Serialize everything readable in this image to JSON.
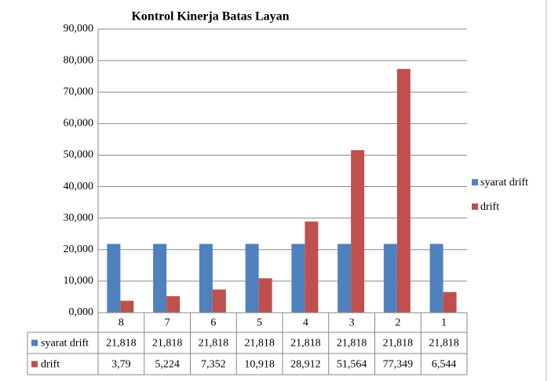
{
  "chart_data": {
    "type": "bar",
    "title": "Kontrol Kinerja Batas Layan",
    "categories": [
      "8",
      "7",
      "6",
      "5",
      "4",
      "3",
      "2",
      "1"
    ],
    "series": [
      {
        "name": "syarat drift",
        "color": "#4f81bd",
        "values": [
          21.818,
          21.818,
          21.818,
          21.818,
          21.818,
          21.818,
          21.818,
          21.818
        ],
        "value_labels": [
          "21,818",
          "21,818",
          "21,818",
          "21,818",
          "21,818",
          "21,818",
          "21,818",
          "21,818"
        ]
      },
      {
        "name": "drift",
        "color": "#c0504d",
        "values": [
          3.79,
          5.224,
          7.352,
          10.918,
          28.912,
          51.564,
          77.349,
          6.544
        ],
        "value_labels": [
          "3,79",
          "5,224",
          "7,352",
          "10,918",
          "28,912",
          "51,564",
          "77,349",
          "6,544"
        ]
      }
    ],
    "ylim": [
      0,
      90
    ],
    "yticks": [
      {
        "value": 0,
        "label": "0,000"
      },
      {
        "value": 10,
        "label": "10,000"
      },
      {
        "value": 20,
        "label": "20,000"
      },
      {
        "value": 30,
        "label": "30,000"
      },
      {
        "value": 40,
        "label": "40,000"
      },
      {
        "value": 50,
        "label": "50,000"
      },
      {
        "value": 60,
        "label": "60,000"
      },
      {
        "value": 70,
        "label": "70,000"
      },
      {
        "value": 80,
        "label": "80,000"
      },
      {
        "value": 90,
        "label": "90,000"
      }
    ],
    "grid": true,
    "legend": "right"
  }
}
